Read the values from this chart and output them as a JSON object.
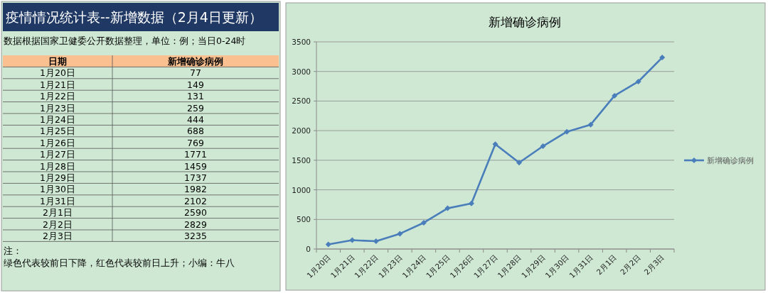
{
  "chart_data": [
    {
      "type": "other",
      "title": "疫情情况统计表--新增数据（2月4日更新）",
      "subtitle": "数据根据国家卫健委公开数据整理，单位：例；当日0-24时",
      "categories": [
        "1月20日",
        "1月21日",
        "1月22日",
        "1月23日",
        "1月24日",
        "1月25日",
        "1月26日",
        "1月27日",
        "1月28日",
        "1月29日",
        "1月30日",
        "1月31日",
        "2月1日",
        "2月2日",
        "2月3日"
      ],
      "annotations": [
        "日期",
        "新增确诊病例",
        "77",
        "149",
        "131",
        "259",
        "444",
        "688",
        "769",
        "1771",
        "1459",
        "1737",
        "1982",
        "2102",
        "2590",
        "2829",
        "3235",
        "注：",
        "绿色代表较前日下降，红色代表较前日上升；小编：牛八"
      ]
    },
    {
      "type": "line",
      "title": "新增确诊病例",
      "categories": [
        "1月20日",
        "1月21日",
        "1月22日",
        "1月23日",
        "1月24日",
        "1月25日",
        "1月26日",
        "1月27日",
        "1月28日",
        "1月29日",
        "1月30日",
        "1月31日",
        "2月1日",
        "2月2日",
        "2月3日"
      ],
      "series": [
        {
          "name": "新增确诊病例",
          "color": "#4a7ebb",
          "values": [
            77,
            149,
            131,
            259,
            444,
            688,
            769,
            1771,
            1459,
            1737,
            1982,
            2102,
            2590,
            2829,
            3235
          ]
        }
      ],
      "ylim": [
        0,
        3500
      ],
      "yticks": [
        0,
        500,
        1000,
        1500,
        2000,
        2500,
        3000,
        3500
      ],
      "grid": "y",
      "legend": "right",
      "marker": "diamond"
    }
  ]
}
